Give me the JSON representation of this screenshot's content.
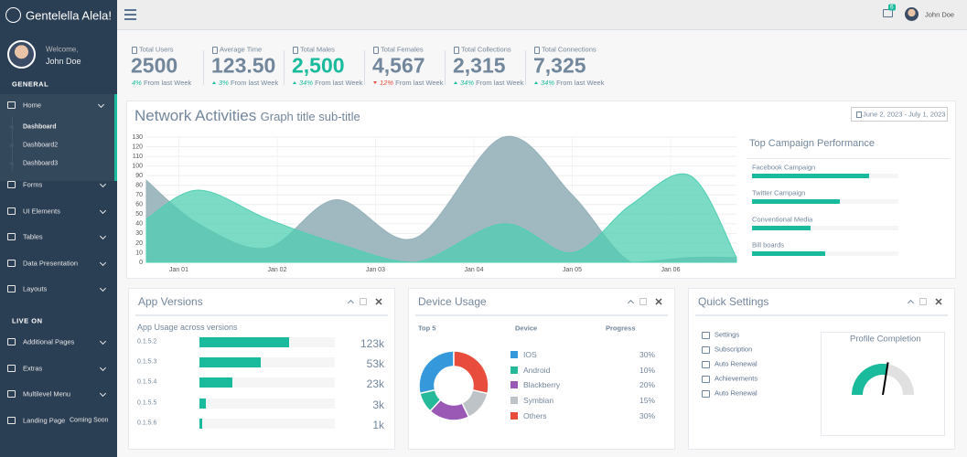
{
  "sidebar": {
    "brand": "Gentelella Alela!",
    "welcome": "Welcome,",
    "user": "John Doe",
    "sections": [
      {
        "title": "GENERAL",
        "items": [
          {
            "label": "Home",
            "children": [
              "Dashboard",
              "Dashboard2",
              "Dashboard3"
            ]
          },
          {
            "label": "Forms"
          },
          {
            "label": "UI Elements"
          },
          {
            "label": "Tables"
          },
          {
            "label": "Data Presentation"
          },
          {
            "label": "Layouts"
          }
        ]
      },
      {
        "title": "LIVE ON",
        "items": [
          {
            "label": "Additional Pages"
          },
          {
            "label": "Extras"
          },
          {
            "label": "Multilevel Menu"
          },
          {
            "label": "Landing Page",
            "badge": "Coming Soon"
          }
        ]
      }
    ]
  },
  "topbar": {
    "mail_count": "6",
    "user": "John Doe"
  },
  "tiles": [
    {
      "label": "Total Users",
      "value": "2500",
      "change": "4%",
      "text": "From last Week",
      "color": "#73879c"
    },
    {
      "label": "Average Time",
      "value": "123.50",
      "change": "3%",
      "direction": "up",
      "text": "From last Week",
      "color": "#73879c"
    },
    {
      "label": "Total Males",
      "value": "2,500",
      "change": "34%",
      "direction": "up",
      "text": "From last Week",
      "color": "#1abb9c"
    },
    {
      "label": "Total Females",
      "value": "4,567",
      "change": "12%",
      "direction": "down",
      "text": "From last Week",
      "color": "#73879c"
    },
    {
      "label": "Total Collections",
      "value": "2,315",
      "change": "34%",
      "direction": "up",
      "text": "From last Week",
      "color": "#73879c"
    },
    {
      "label": "Total Connections",
      "value": "7,325",
      "change": "34%",
      "direction": "up",
      "text": "From last Week",
      "color": "#73879c"
    }
  ],
  "network_chart": {
    "type": "area",
    "title": "Network Activities",
    "subtitle": "Graph title sub-title",
    "date_range": "June 2, 2023 - July 1, 2023",
    "x": [
      0.67,
      1.2,
      1.9,
      2.6,
      3.4,
      4.3,
      5.0,
      5.6,
      6.2,
      6.67
    ],
    "xlim": [
      0.67,
      6.67
    ],
    "xticks": [
      {
        "value": 1,
        "label": "Jan 01"
      },
      {
        "value": 2,
        "label": "Jan 02"
      },
      {
        "value": 3,
        "label": "Jan 03"
      },
      {
        "value": 4,
        "label": "Jan 04"
      },
      {
        "value": 5,
        "label": "Jan 05"
      },
      {
        "value": 6,
        "label": "Jan 06"
      }
    ],
    "ylim": [
      0,
      130
    ],
    "yticks": [
      0,
      10,
      20,
      30,
      40,
      50,
      60,
      70,
      80,
      90,
      100,
      110,
      120,
      130
    ],
    "grid": true,
    "series": [
      {
        "color": "#96b1ba",
        "values": [
          85,
          40,
          15,
          65,
          25,
          130,
          70,
          0,
          5,
          5
        ]
      },
      {
        "color": "#4fcfb2",
        "values": [
          45,
          75,
          45,
          20,
          0,
          40,
          10,
          60,
          90,
          5
        ]
      }
    ]
  },
  "campaigns": {
    "title": "Top Campaign Performance",
    "items": [
      {
        "label": "Facebook Campaign",
        "progress": 80
      },
      {
        "label": "Twitter Campaign",
        "progress": 60
      },
      {
        "label": "Conventional Media",
        "progress": 40
      },
      {
        "label": "Bill boards",
        "progress": 50
      }
    ]
  },
  "app_versions": {
    "title": "App Versions",
    "subtitle": "App Usage across versions",
    "rows": [
      {
        "version": "0.1.5.2",
        "progress": 66,
        "usage": "123k"
      },
      {
        "version": "0.1.5.3",
        "progress": 45,
        "usage": "53k"
      },
      {
        "version": "0.1.5.4",
        "progress": 24,
        "usage": "23k"
      },
      {
        "version": "0.1.5.5",
        "progress": 5,
        "usage": "3k"
      },
      {
        "version": "0.1.5.6",
        "progress": 2,
        "usage": "1k"
      }
    ]
  },
  "device_usage": {
    "title": "Device Usage",
    "headers": [
      "Top 5",
      "Device",
      "Progress"
    ],
    "devices": [
      {
        "name": "IOS",
        "color": "#3498db",
        "value": 30,
        "label": "30%"
      },
      {
        "name": "Android",
        "color": "#26b99a",
        "value": 10,
        "label": "10%"
      },
      {
        "name": "Blackberry",
        "color": "#9b59b6",
        "value": 20,
        "label": "20%"
      },
      {
        "name": "Symbian",
        "color": "#bdc3c7",
        "value": 15,
        "label": "15%"
      },
      {
        "name": "Others",
        "color": "#e74c3c",
        "value": 30,
        "label": "30%"
      }
    ]
  },
  "quick_settings": {
    "title": "Quick Settings",
    "items": [
      "Settings",
      "Subscription",
      "Auto Renewal",
      "Achievements",
      "Auto Renewal"
    ],
    "profile_completion": {
      "title": "Profile Completion",
      "value": 55,
      "range": [
        0,
        100
      ]
    }
  }
}
